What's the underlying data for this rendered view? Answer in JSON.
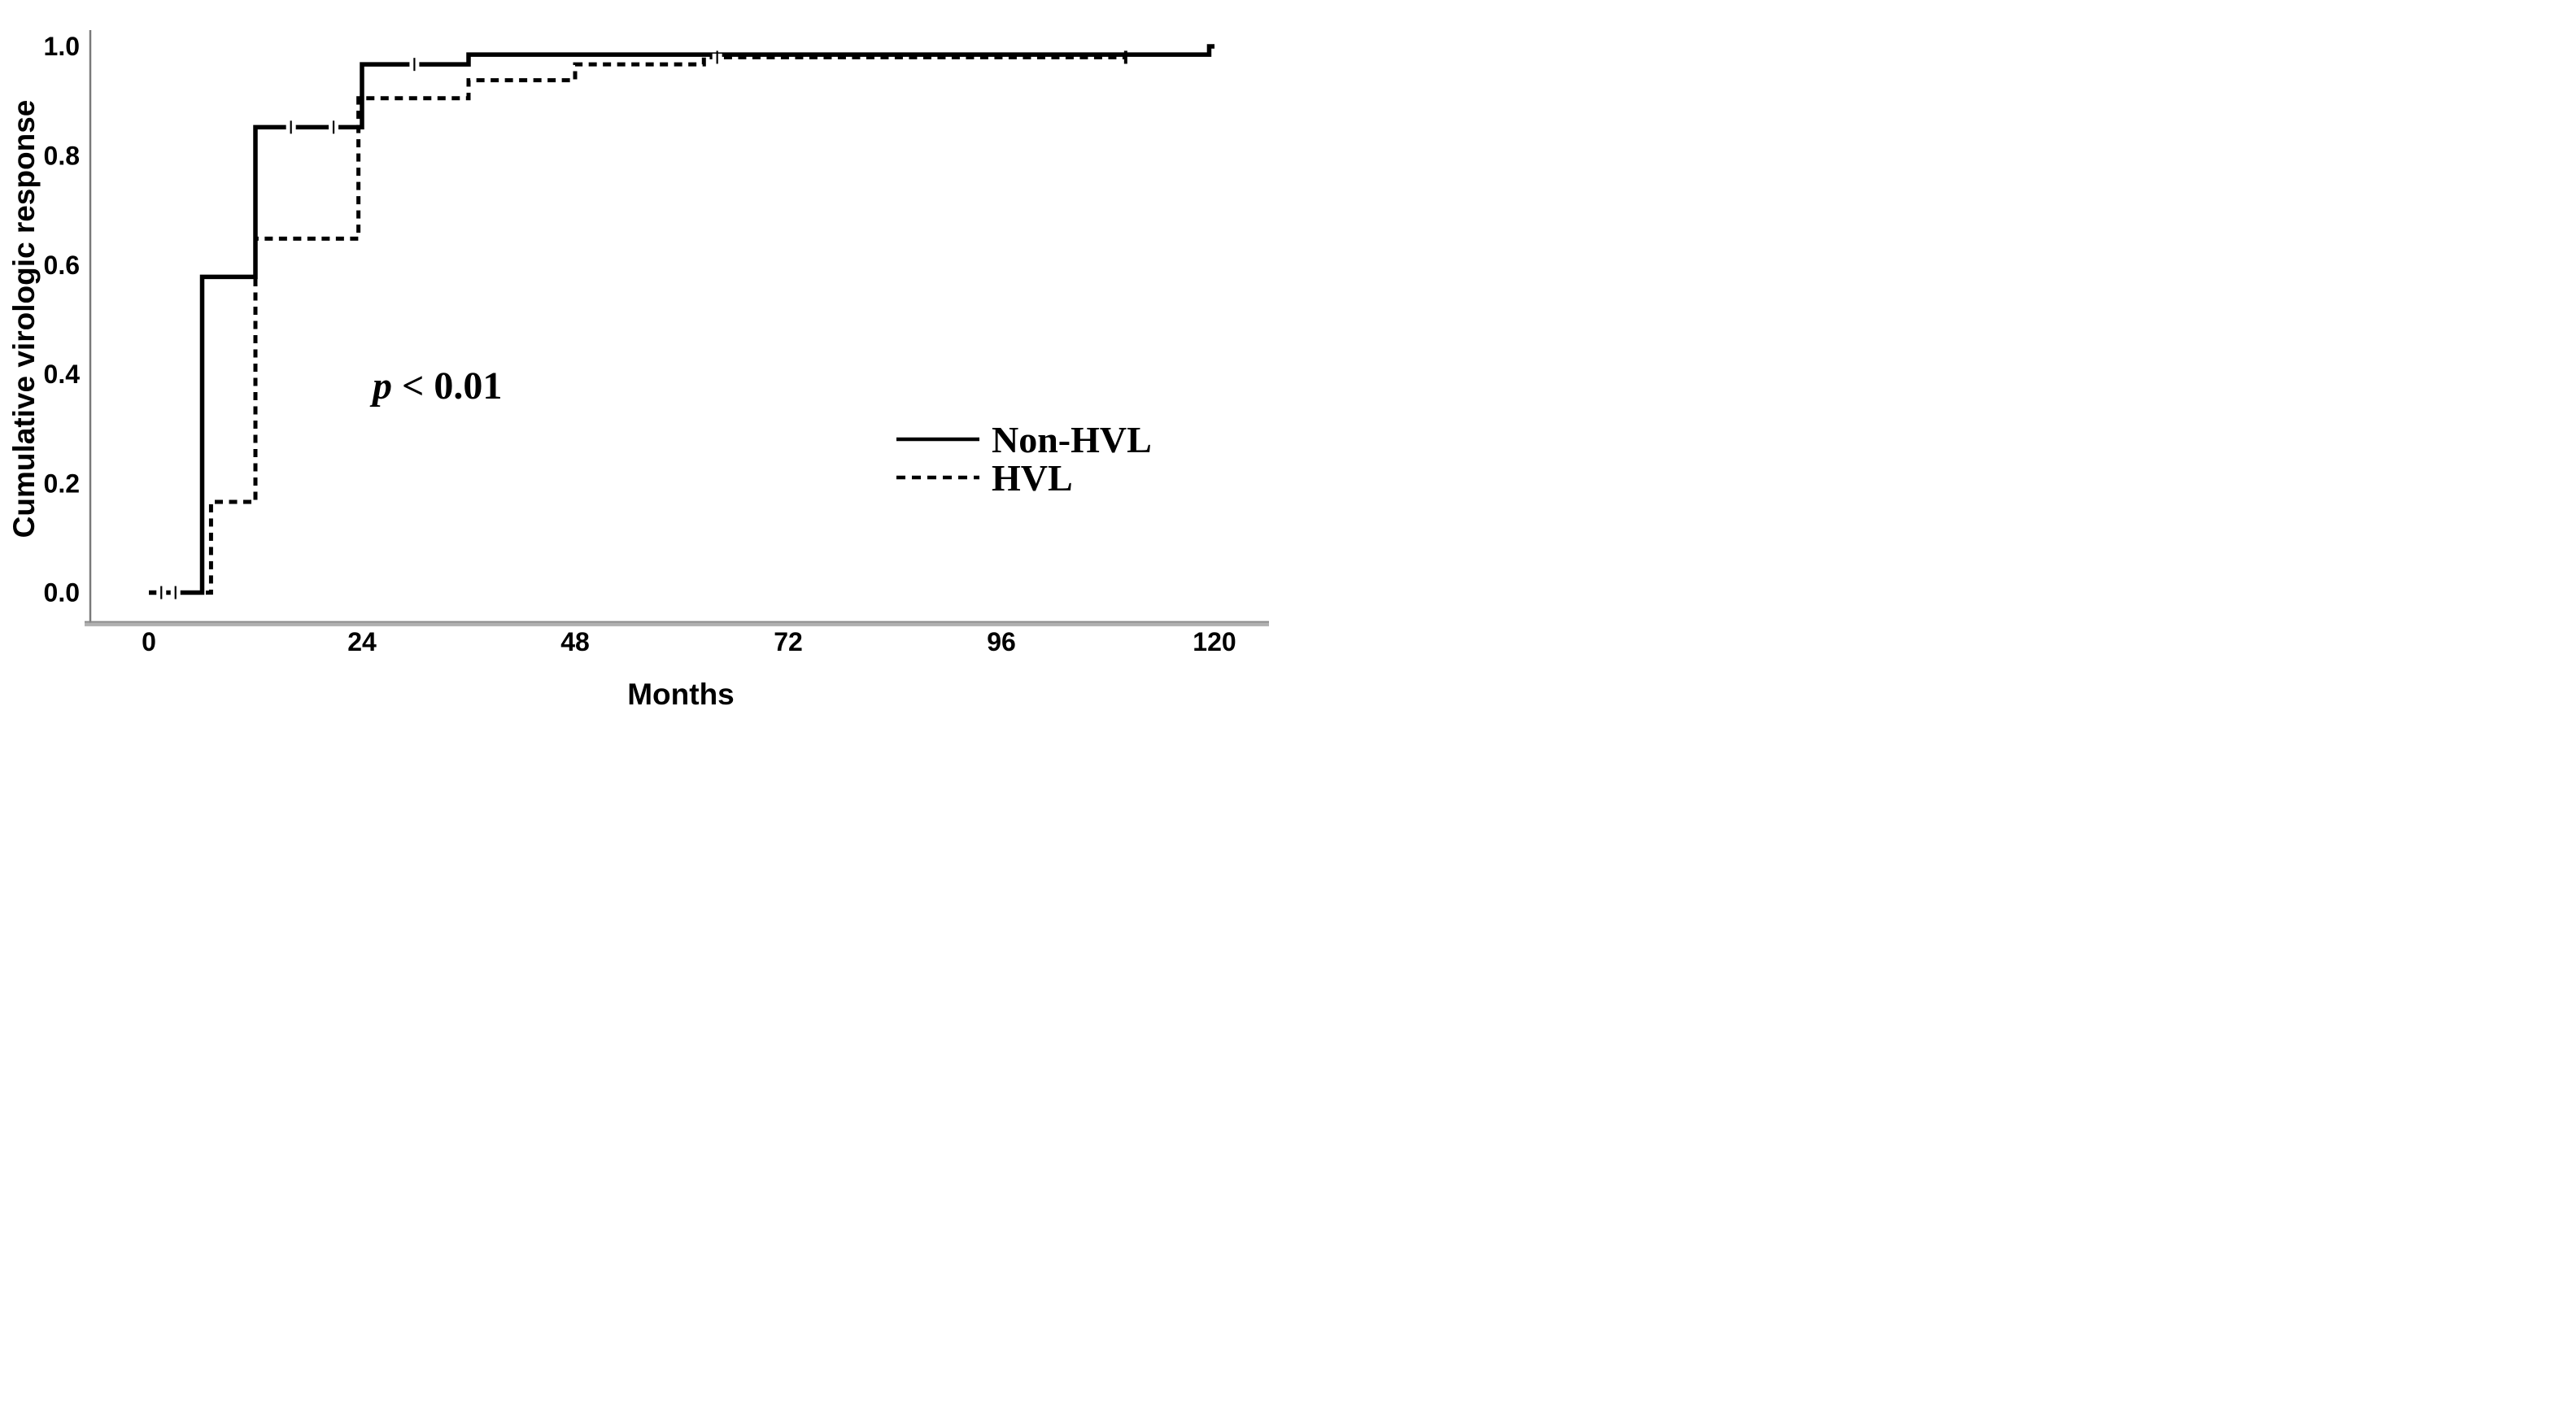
{
  "chart_data": {
    "type": "line",
    "subtype": "kaplan-meier-step-plot",
    "title": "",
    "xlabel": "Months",
    "ylabel": "Cumulative virologic response",
    "x_ticks": [
      0,
      24,
      48,
      72,
      96,
      120
    ],
    "x_tick_labels": [
      "0",
      "24",
      "48",
      "72",
      "96",
      "120"
    ],
    "y_ticks": [
      0.0,
      0.2,
      0.4,
      0.6,
      0.8,
      1.0
    ],
    "y_tick_labels": [
      "0.0",
      "0.2",
      "0.4",
      "0.6",
      "0.8",
      "1.0"
    ],
    "xlim": [
      0,
      120
    ],
    "ylim": [
      0.0,
      1.04
    ],
    "grid": false,
    "annotation": {
      "full": "p < 0.01",
      "p_symbol": "p",
      "comparison": " < 0.01"
    },
    "legend": {
      "position": "right-center",
      "entries": [
        {
          "label": "Non-HVL",
          "line_style": "solid"
        },
        {
          "label": "HVL",
          "line_style": "dashed"
        }
      ]
    },
    "series": [
      {
        "name": "Non-HVL",
        "line_style": "solid",
        "color": "#000000",
        "steps": [
          [
            0,
            0.0
          ],
          [
            6,
            0.578
          ],
          [
            12,
            0.852
          ],
          [
            24,
            0.967
          ],
          [
            36,
            0.985
          ],
          [
            119.4,
            1.0
          ]
        ],
        "end_x": 120,
        "censor_marks": [
          [
            1.4,
            0.0
          ],
          [
            3.0,
            0.0
          ],
          [
            16,
            0.852
          ],
          [
            20.8,
            0.852
          ],
          [
            29.9,
            0.967
          ]
        ],
        "terminal_censor": false
      },
      {
        "name": "HVL",
        "line_style": "dashed",
        "color": "#000000",
        "steps": [
          [
            0,
            0.0
          ],
          [
            7,
            0.166
          ],
          [
            12,
            0.648
          ],
          [
            23.6,
            0.905
          ],
          [
            36,
            0.938
          ],
          [
            48,
            0.967
          ],
          [
            62.5,
            0.98
          ]
        ],
        "end_x": 110,
        "censor_marks": [
          [
            64,
            0.98
          ]
        ],
        "terminal_censor": true
      }
    ],
    "colors": {
      "curves": "#000000",
      "x_axis_band": "#b0b0b0",
      "x_axis_edge": "#8a8a8a",
      "y_axis": "#7a7a7a",
      "background": "#ffffff",
      "text": "#000000"
    }
  }
}
